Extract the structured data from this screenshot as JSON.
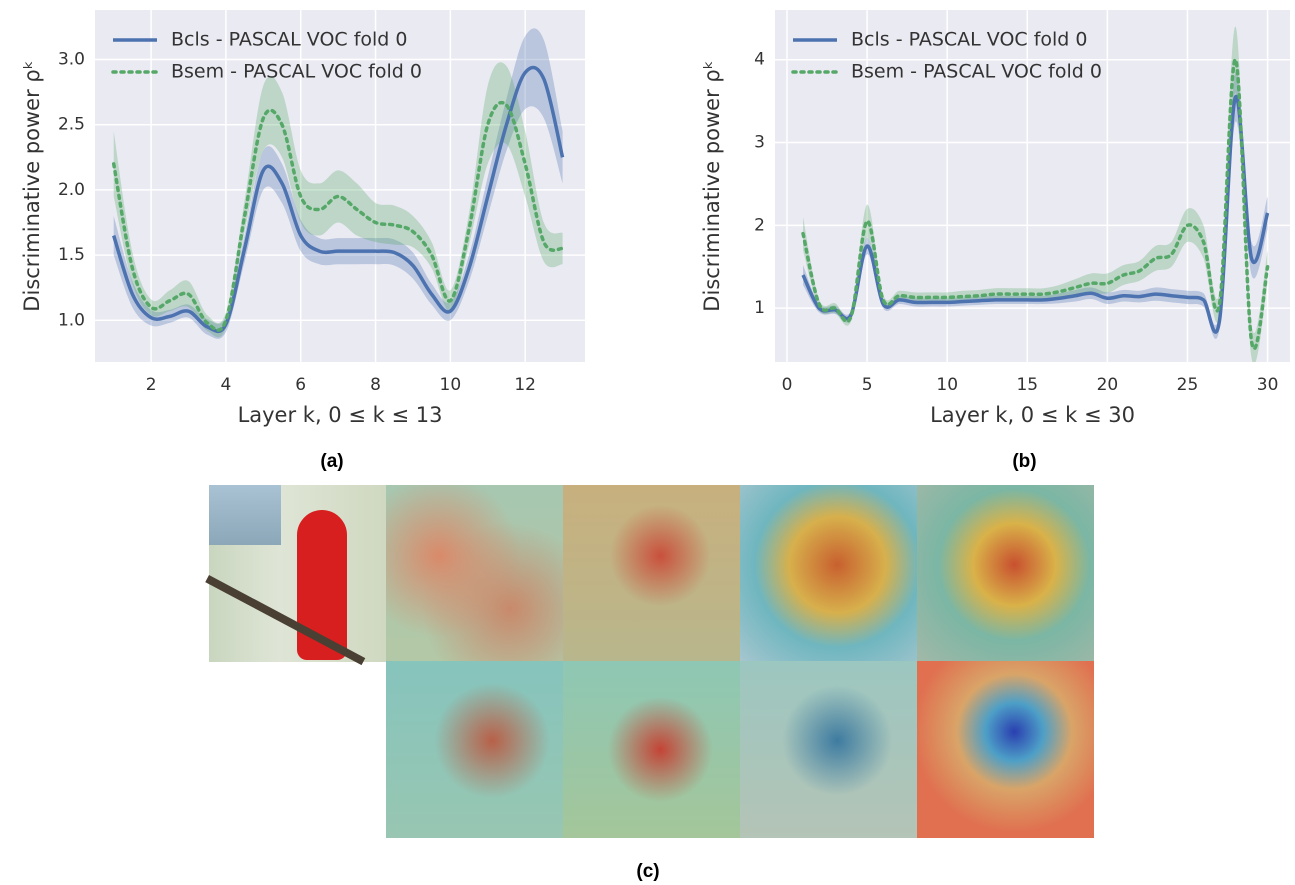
{
  "chart_data": [
    {
      "type": "line",
      "panel_label": "(a)",
      "x_label": "Layer k, 0 ≤ k ≤ 13",
      "y_label": "Discriminative power ρᵏ",
      "x": [
        1,
        1.5,
        2,
        2.5,
        3,
        3.5,
        4,
        4.5,
        5,
        5.5,
        6,
        6.5,
        7,
        7.5,
        8,
        8.5,
        9,
        9.5,
        10,
        10.5,
        11,
        11.5,
        12,
        12.5,
        13
      ],
      "series": [
        {
          "name": "Bcls - PASCAL VOC fold 0",
          "color": "#4c72b0",
          "style": "solid",
          "values": [
            1.65,
            1.2,
            1.02,
            1.03,
            1.07,
            0.95,
            0.97,
            1.55,
            2.15,
            2.05,
            1.65,
            1.53,
            1.53,
            1.53,
            1.53,
            1.52,
            1.42,
            1.2,
            1.07,
            1.4,
            1.95,
            2.5,
            2.9,
            2.85,
            2.25
          ],
          "errors": [
            0.15,
            0.1,
            0.06,
            0.05,
            0.05,
            0.06,
            0.06,
            0.1,
            0.15,
            0.15,
            0.12,
            0.1,
            0.1,
            0.1,
            0.1,
            0.1,
            0.1,
            0.08,
            0.07,
            0.1,
            0.15,
            0.2,
            0.28,
            0.3,
            0.2
          ]
        },
        {
          "name": "Bsem - PASCAL VOC fold 0",
          "color": "#55a868",
          "style": "dotted",
          "values": [
            2.2,
            1.4,
            1.1,
            1.15,
            1.2,
            0.98,
            1.0,
            1.8,
            2.55,
            2.5,
            1.95,
            1.85,
            1.95,
            1.85,
            1.75,
            1.73,
            1.68,
            1.5,
            1.15,
            1.7,
            2.5,
            2.65,
            2.2,
            1.6,
            1.55
          ],
          "errors": [
            0.25,
            0.12,
            0.06,
            0.08,
            0.1,
            0.06,
            0.06,
            0.12,
            0.25,
            0.25,
            0.2,
            0.2,
            0.2,
            0.2,
            0.15,
            0.15,
            0.12,
            0.1,
            0.08,
            0.12,
            0.3,
            0.3,
            0.25,
            0.15,
            0.12
          ]
        }
      ],
      "xlim": [
        0.5,
        13.6
      ],
      "xticks": [
        2,
        4,
        6,
        8,
        10,
        12
      ],
      "ylim": [
        0.68,
        3.38
      ],
      "yticks": [
        {
          "value": 1,
          "label": "1.0"
        },
        1.5,
        {
          "value": 2,
          "label": "2.0"
        },
        2.5,
        {
          "value": 3,
          "label": "3.0"
        }
      ],
      "grid": true,
      "legend": "upper-left"
    },
    {
      "type": "line",
      "panel_label": "(b)",
      "x_label": "Layer k, 0 ≤ k ≤ 30",
      "y_label": "Discriminative power ρᵏ",
      "x": [
        1,
        2,
        3,
        4,
        5,
        6,
        7,
        8,
        9,
        10,
        11,
        12,
        13,
        14,
        15,
        16,
        17,
        18,
        19,
        20,
        21,
        22,
        23,
        24,
        25,
        26,
        27,
        28,
        29,
        30
      ],
      "series": [
        {
          "name": "Bcls - PASCAL VOC fold 0",
          "color": "#4c72b0",
          "style": "solid",
          "values": [
            1.4,
            1.0,
            0.98,
            0.92,
            1.75,
            1.05,
            1.1,
            1.07,
            1.07,
            1.07,
            1.08,
            1.09,
            1.1,
            1.1,
            1.1,
            1.1,
            1.12,
            1.15,
            1.18,
            1.12,
            1.15,
            1.14,
            1.17,
            1.15,
            1.13,
            1.1,
            0.85,
            3.55,
            1.6,
            2.15
          ],
          "errors": [
            0.12,
            0.05,
            0.05,
            0.05,
            0.1,
            0.05,
            0.05,
            0.05,
            0.05,
            0.05,
            0.05,
            0.05,
            0.05,
            0.05,
            0.05,
            0.05,
            0.06,
            0.07,
            0.07,
            0.07,
            0.07,
            0.07,
            0.08,
            0.08,
            0.08,
            0.08,
            0.1,
            0.3,
            0.2,
            0.2
          ]
        },
        {
          "name": "Bsem - PASCAL VOC fold 0",
          "color": "#55a868",
          "style": "dotted",
          "values": [
            1.9,
            1.05,
            1.0,
            0.9,
            2.05,
            1.1,
            1.15,
            1.13,
            1.13,
            1.13,
            1.14,
            1.15,
            1.17,
            1.17,
            1.17,
            1.17,
            1.2,
            1.25,
            1.3,
            1.3,
            1.4,
            1.45,
            1.6,
            1.65,
            2.0,
            1.8,
            1.05,
            4.0,
            0.6,
            1.5
          ],
          "errors": [
            0.2,
            0.06,
            0.06,
            0.06,
            0.2,
            0.06,
            0.06,
            0.06,
            0.06,
            0.06,
            0.07,
            0.07,
            0.07,
            0.07,
            0.07,
            0.07,
            0.08,
            0.1,
            0.12,
            0.12,
            0.12,
            0.12,
            0.15,
            0.15,
            0.2,
            0.2,
            0.15,
            0.4,
            0.2,
            0.2
          ]
        }
      ],
      "xlim": [
        -0.75,
        31.4
      ],
      "xticks": [
        0,
        5,
        10,
        15,
        20,
        25,
        30
      ],
      "ylim": [
        0.35,
        4.6
      ],
      "yticks": [
        1,
        2,
        3,
        4
      ],
      "grid": true,
      "legend": "upper-left"
    }
  ],
  "figure": {
    "panel_c_label": "(c)"
  }
}
